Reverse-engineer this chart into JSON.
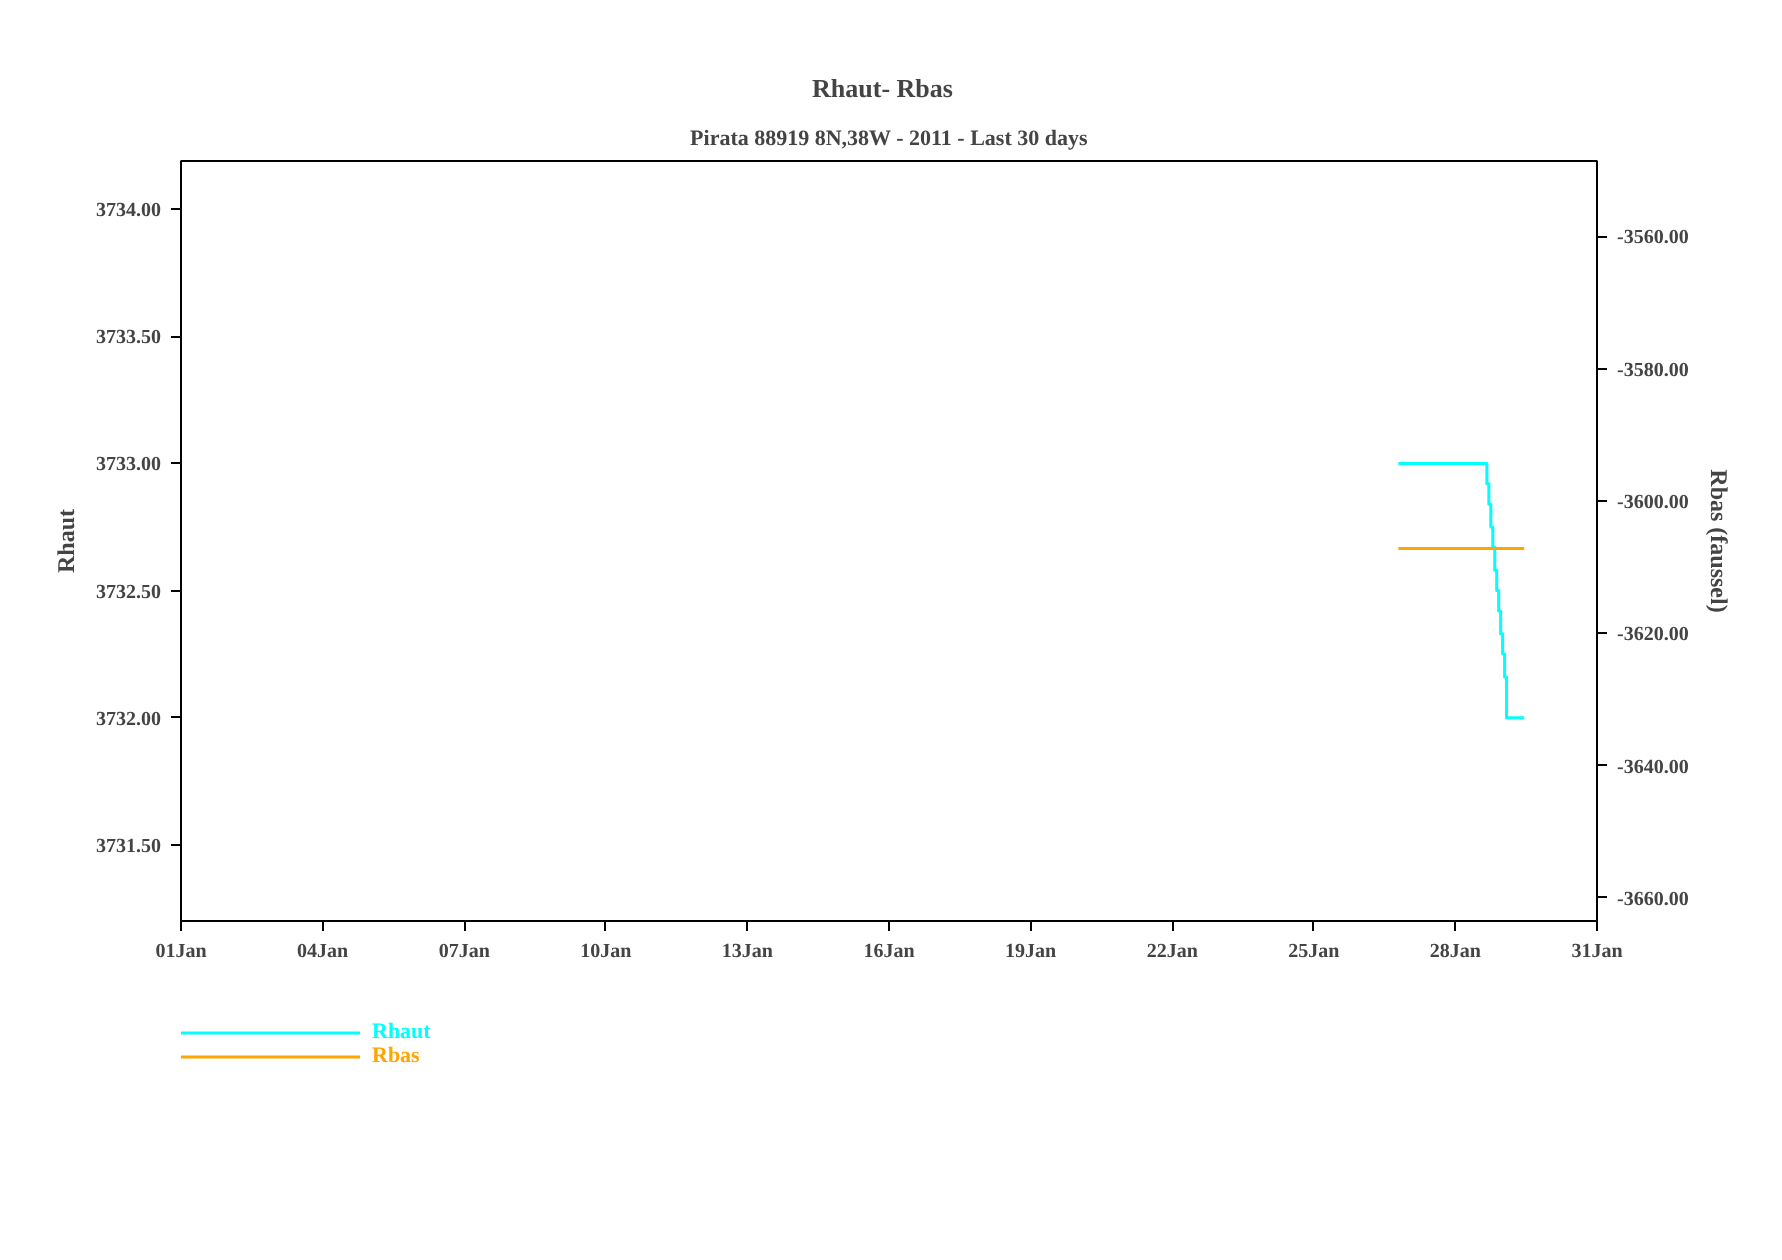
{
  "chart_data": {
    "type": "step",
    "title": "Rhaut-   Rbas",
    "subtitle": "Pirata 88919 8N,38W - 2011 - Last 30 days",
    "ylabel": "Rhaut",
    "y2label": "Rbas (faussel)",
    "xlim": [
      "2011-01-01",
      "2011-01-31"
    ],
    "xticks": [
      {
        "value": "2011-01-01",
        "label": "01Jan"
      },
      {
        "value": "2011-01-04",
        "label": "04Jan"
      },
      {
        "value": "2011-01-07",
        "label": "07Jan"
      },
      {
        "value": "2011-01-10",
        "label": "10Jan"
      },
      {
        "value": "2011-01-13",
        "label": "13Jan"
      },
      {
        "value": "2011-01-16",
        "label": "16Jan"
      },
      {
        "value": "2011-01-19",
        "label": "19Jan"
      },
      {
        "value": "2011-01-22",
        "label": "22Jan"
      },
      {
        "value": "2011-01-25",
        "label": "25Jan"
      },
      {
        "value": "2011-01-28",
        "label": "28Jan"
      },
      {
        "value": "2011-01-31",
        "label": "31Jan"
      }
    ],
    "ylim": [
      3731.2,
      3734.19
    ],
    "yticks": [
      {
        "value": 3731.5,
        "label": "3731.50"
      },
      {
        "value": 3732,
        "label": "3732.00"
      },
      {
        "value": 3732.5,
        "label": "3732.50"
      },
      {
        "value": 3733,
        "label": "3733.00"
      },
      {
        "value": 3733.5,
        "label": "3733.50"
      },
      {
        "value": 3734,
        "label": "3734.00"
      }
    ],
    "y2lim": [
      -3663.5,
      -3548.6
    ],
    "y2ticks": [
      {
        "value": -3660,
        "label": "-3660.00"
      },
      {
        "value": -3640,
        "label": "-3640.00"
      },
      {
        "value": -3620,
        "label": "-3620.00"
      },
      {
        "value": -3600,
        "label": "-3600.00"
      },
      {
        "value": -3580,
        "label": "-3580.00"
      },
      {
        "value": -3560,
        "label": "-3560.00"
      }
    ],
    "grid": false,
    "legend": "bottom left",
    "series": [
      {
        "name": "Rhaut",
        "color": "#00ffff",
        "x": [
          "2011-01-26T19:00",
          "2011-01-28T15:00",
          "2011-01-28T16:00",
          "2011-01-28T17:00",
          "2011-01-28T18:00",
          "2011-01-28T19:00",
          "2011-01-28T20:00",
          "2011-01-28T21:00",
          "2011-01-28T22:00",
          "2011-01-28T23:00",
          "2011-01-29T00:00",
          "2011-01-29T01:00",
          "2011-01-29T02:00",
          "2011-01-29T11:00"
        ],
        "values": [
          3733.0,
          3733.0,
          3732.92,
          3732.84,
          3732.75,
          3732.67,
          3732.58,
          3732.5,
          3732.42,
          3732.33,
          3732.25,
          3732.16,
          3732.0,
          3732.0
        ]
      },
      {
        "name": "Rbas",
        "color": "#ffa500",
        "type": "line",
        "axis": "y2",
        "x": [
          "2011-01-26T19:00",
          "2011-01-29T11:00"
        ],
        "values": [
          -3607.2,
          -3607.2
        ]
      }
    ]
  }
}
